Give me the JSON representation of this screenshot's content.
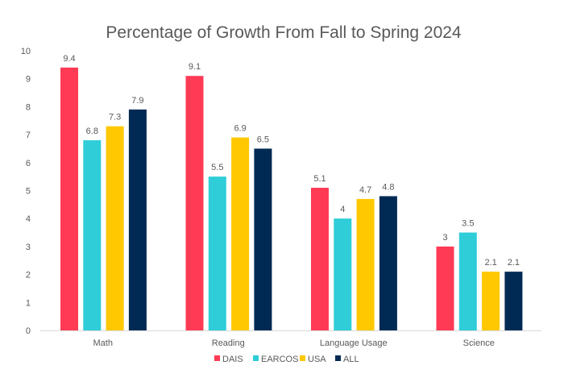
{
  "chart_data": {
    "type": "bar",
    "title": "Percentage of Growth From Fall to Spring 2024",
    "xlabel": "",
    "ylabel": "",
    "ylim": [
      0,
      10
    ],
    "yticks": [
      0,
      1,
      2,
      3,
      4,
      5,
      6,
      7,
      8,
      9,
      10
    ],
    "grid": false,
    "legend_position": "bottom",
    "categories": [
      "Math",
      "Reading",
      "Language Usage",
      "Science"
    ],
    "series": [
      {
        "name": "DAIS",
        "color": "#FF3A55",
        "values": [
          9.4,
          9.1,
          5.1,
          3
        ]
      },
      {
        "name": "EARCOS",
        "color": "#2ECDD8",
        "values": [
          6.8,
          5.5,
          4,
          3.5
        ]
      },
      {
        "name": "USA",
        "color": "#FFC800",
        "values": [
          7.3,
          6.9,
          4.7,
          2.1
        ]
      },
      {
        "name": "ALL",
        "color": "#002A54",
        "values": [
          7.9,
          6.5,
          4.8,
          2.1
        ]
      }
    ]
  }
}
